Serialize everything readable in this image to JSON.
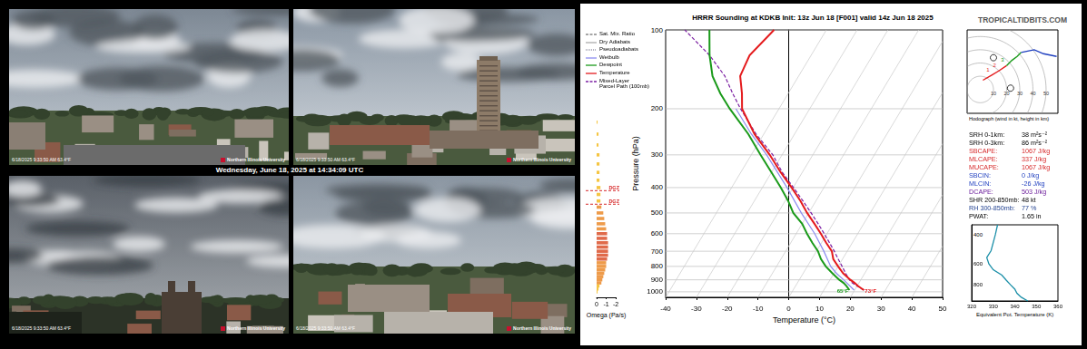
{
  "webcams": {
    "caption": "Wednesday, June 18, 2025 at 14:34:09 UTC",
    "panels": [
      {
        "timestamp": "6/18/2025 9:33:50 AM 63.4°F",
        "logo": "Northern Illinois University"
      },
      {
        "timestamp": "6/18/2025 9:33:50 AM 63.4°F",
        "logo": "Northern Illinois University"
      },
      {
        "timestamp": "6/18/2025 9:33:50 AM 63.4°F",
        "logo": "Northern Illinois University"
      },
      {
        "timestamp": "6/18/2025 9:33:50 AM 63.4°F",
        "logo": "Northern Illinois University"
      }
    ]
  },
  "site": "TROPICALTIDBITS.COM",
  "legend_items": [
    {
      "name": "Sat. Mix. Ratio",
      "color": "#888888",
      "line_style": "dashed"
    },
    {
      "name": "Dry Adiabats",
      "color": "#aaaaaa",
      "line_style": "solid"
    },
    {
      "name": "Pseudoadiabats",
      "color": "#9999aa",
      "line_style": "dotted"
    },
    {
      "name": "Wetbulb",
      "color": "#8c8cf0",
      "line_style": "solid"
    },
    {
      "name": "Dewpoint",
      "color": "#1a9a1a",
      "line_style": "solid"
    },
    {
      "name": "Temperature",
      "color": "#e41a1c",
      "line_style": "solid"
    },
    {
      "name": "Mixed-Layer\nParcel Path (100mb)",
      "color": "#7b1fa2",
      "line_style": "dashed"
    }
  ],
  "indices": [
    {
      "label": "SRH 0-1km:",
      "value": "38 m²s⁻²",
      "color": "#000000"
    },
    {
      "label": "SRH 0-3km:",
      "value": "86 m²s⁻²",
      "color": "#000000"
    },
    {
      "label": "SBCAPE:",
      "value": "1067 J/kg",
      "color": "#d62728"
    },
    {
      "label": "MLCAPE:",
      "value": "337 J/kg",
      "color": "#d62728"
    },
    {
      "label": "MUCAPE:",
      "value": "1067 J/kg",
      "color": "#d62728"
    },
    {
      "label": "SBCIN:",
      "value": "0 J/kg",
      "color": "#1f3fbf"
    },
    {
      "label": "MLCIN:",
      "value": "-26 J/kg",
      "color": "#1f3fbf"
    },
    {
      "label": "DCAPE:",
      "value": "503 J/kg",
      "color": "#6a1b9a"
    },
    {
      "label": "SHR 200-850mb:",
      "value": "48 kt",
      "color": "#000000"
    },
    {
      "label": "RH 300-850mb:",
      "value": "77 %",
      "color": "#1f3f8f"
    },
    {
      "label": "PWAT:",
      "value": "1.65 in",
      "color": "#000000"
    }
  ],
  "chart_data": [
    {
      "type": "skewt",
      "title": "HRRR Sounding at KDKB Init: 13z Jun 18 [F001] valid 14z Jun 18 2025",
      "xlabel": "Temperature (°C)",
      "ylabel": "Pressure (hPa)",
      "xlim": [
        -40,
        50
      ],
      "xticks": [
        -40,
        -30,
        -20,
        -10,
        0,
        10,
        20,
        30,
        40,
        50
      ],
      "ylim": [
        100,
        1050
      ],
      "yticks": [
        100,
        200,
        300,
        400,
        500,
        600,
        700,
        800,
        900,
        1000
      ],
      "log": "y",
      "grid": true,
      "series": [
        {
          "color": "#8c8cf0",
          "line_style": "thin",
          "y": [
            985,
            900,
            850,
            800,
            700,
            600,
            500,
            400,
            300,
            250,
            200
          ],
          "x": [
            19.8,
            14.4,
            10.8,
            7.6,
            2.4,
            -4,
            -12.4,
            -22,
            -35,
            -44,
            -54
          ]
        },
        {
          "color": "#7b1fa2",
          "line_style": "dashed",
          "y": [
            985,
            950,
            925,
            900,
            850,
            800,
            750,
            700,
            650,
            600,
            550,
            500,
            450,
            400,
            350,
            300,
            250,
            200,
            175,
            150,
            125,
            100
          ],
          "x": [
            23,
            20,
            17.8,
            16.3,
            13.8,
            11.3,
            8.6,
            5.8,
            2.6,
            -0.9,
            -4.8,
            -9.2,
            -14.2,
            -19.9,
            -26.5,
            -33,
            -42.5,
            -52.5,
            -58,
            -64,
            -73,
            -86
          ]
        },
        {
          "color": "#1a9a1a",
          "line_style": "solid",
          "surface_label": "65°F",
          "y": [
            985,
            950,
            925,
            900,
            850,
            800,
            750,
            700,
            650,
            600,
            550,
            500,
            450,
            400,
            350,
            300,
            250,
            200,
            175,
            150,
            125,
            100
          ],
          "x": [
            18.3,
            16.5,
            15,
            13,
            9.5,
            6,
            3,
            0.5,
            -3,
            -6.5,
            -10,
            -15,
            -19,
            -24,
            -30,
            -37,
            -45,
            -56,
            -62,
            -68,
            -73,
            -78
          ]
        },
        {
          "color": "#e41a1c",
          "line_style": "solid",
          "surface_label": "73°F",
          "y": [
            985,
            975,
            950,
            925,
            900,
            850,
            800,
            750,
            700,
            650,
            600,
            550,
            500,
            450,
            400,
            350,
            300,
            250,
            200,
            175,
            150,
            125,
            100
          ],
          "x": [
            23,
            22.2,
            20.3,
            18.6,
            16.6,
            13,
            10,
            7,
            5,
            1.5,
            -2,
            -6,
            -10.5,
            -15,
            -20.5,
            -27,
            -34,
            -43,
            -52,
            -55,
            -59,
            -60,
            -57
          ]
        }
      ]
    },
    {
      "type": "bar",
      "orientation": "horizontal",
      "xlabel": "Omega (Pa/s)",
      "xlim": [
        0,
        -2
      ],
      "xticks": [
        0,
        -1,
        -2
      ],
      "ylim": [
        100,
        1050
      ],
      "log": "y",
      "tick_labels": "x",
      "y": [
        225,
        250,
        275,
        300,
        325,
        350,
        375,
        400,
        425,
        450,
        475,
        500,
        525,
        550,
        575,
        600,
        625,
        650,
        675,
        700,
        725,
        750,
        775,
        800,
        825,
        850,
        875,
        900,
        925,
        950,
        975,
        1000
      ],
      "values": [
        -0.1,
        -0.2,
        -0.2,
        -0.3,
        -0.3,
        -0.3,
        -0.3,
        -0.4,
        -0.4,
        -0.4,
        -0.5,
        -0.7,
        -0.8,
        -0.9,
        -1.0,
        -1.1,
        -1.1,
        -1.2,
        -1.2,
        -1.2,
        -1.2,
        -1.1,
        -1.0,
        -1.0,
        -0.9,
        -0.8,
        -0.7,
        -0.6,
        -0.5,
        -0.3,
        -0.2,
        -0.1
      ],
      "colors": [
        "#f5c542",
        "#f5c542",
        "#f5c542",
        "#f5c542",
        "#f5c542",
        "#f5c542",
        "#f5c542",
        "#f5c542",
        "#f5c542",
        "#f5c542",
        "#ee9b4a",
        "#ee9b4a",
        "#ee9b4a",
        "#ee9b4a",
        "#ee9b4a",
        "#e06a4a",
        "#e06a4a",
        "#e06a4a",
        "#e06a4a",
        "#e06a4a",
        "#e06a4a",
        "#e06a4a",
        "#ee9b4a",
        "#ee9b4a",
        "#ee9b4a",
        "#ee9b4a",
        "#ee9b4a",
        "#ee9b4a",
        "#ee9b4a",
        "#f5c542",
        "#f5c542",
        "#f5c542"
      ],
      "dgz": [
        {
          "value": 411,
          "label": "DGZ"
        },
        {
          "value": 463,
          "label": "DGZ"
        }
      ]
    },
    {
      "type": "hodograph",
      "caption": "Hodograph (wind in kt, height in km)",
      "xlim": [
        -10,
        59
      ],
      "ylim": [
        -18,
        45
      ],
      "xticks": [
        10,
        20,
        30,
        40,
        50
      ],
      "tick_labels": "x",
      "series": [
        {
          "color": "#e41a1c",
          "x": [
            2,
            9,
            14,
            20
          ],
          "y": [
            7,
            11,
            14,
            18
          ],
          "labels": [
            null,
            "1",
            "2",
            null
          ]
        },
        {
          "color": "#1a9a1a",
          "x": [
            20,
            24,
            28,
            31
          ],
          "y": [
            18,
            22,
            25,
            28
          ],
          "labels": [
            "3",
            null,
            null,
            null
          ]
        },
        {
          "color": "#1f3fbf",
          "x": [
            31,
            36,
            41,
            48,
            58
          ],
          "y": [
            28,
            29,
            30,
            27,
            25
          ]
        }
      ],
      "markers": {
        "x": [
          10,
          23
        ],
        "y": [
          24,
          1
        ]
      }
    },
    {
      "type": "line",
      "xlabel": "Equivalent Pot. Temperature (K)",
      "xlim": [
        320,
        360
      ],
      "xticks": [
        320,
        330,
        340,
        350,
        360
      ],
      "ylim": [
        350,
        1000
      ],
      "yticks": [
        400,
        600,
        800
      ],
      "log": "y",
      "color": "#1b8fa8",
      "x": [
        346,
        343,
        341,
        340,
        338,
        336,
        334,
        330,
        328,
        327,
        329,
        331,
        332
      ],
      "y": [
        1000,
        950,
        900,
        850,
        800,
        750,
        700,
        650,
        600,
        550,
        500,
        400,
        350
      ]
    }
  ]
}
